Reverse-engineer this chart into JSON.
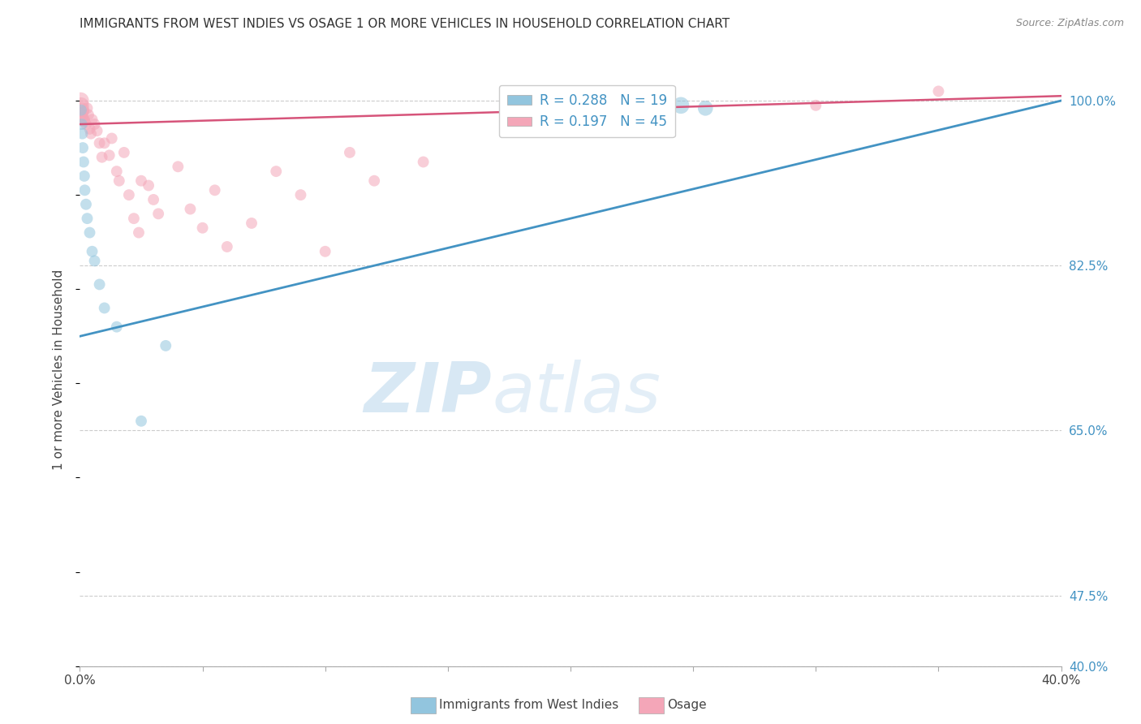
{
  "title": "IMMIGRANTS FROM WEST INDIES VS OSAGE 1 OR MORE VEHICLES IN HOUSEHOLD CORRELATION CHART",
  "source": "Source: ZipAtlas.com",
  "ylabel": "1 or more Vehicles in Household",
  "yticks": [
    40.0,
    47.5,
    65.0,
    82.5,
    100.0
  ],
  "ytick_labels": [
    "40.0%",
    "47.5%",
    "65.0%",
    "82.5%",
    "100.0%"
  ],
  "xmin": 0.0,
  "xmax": 40.0,
  "ymin": 40.0,
  "ymax": 103.0,
  "legend_label1": "Immigrants from West Indies",
  "legend_label2": "Osage",
  "r1": "0.288",
  "n1": "19",
  "r2": "0.197",
  "n2": "45",
  "color1": "#92c5de",
  "color2": "#f4a6b8",
  "line_color1": "#4393c3",
  "line_color2": "#d6547a",
  "watermark_zip": "ZIP",
  "watermark_atlas": "atlas",
  "blue_x0": 0.0,
  "blue_x1": 40.0,
  "blue_y0": 75.0,
  "blue_y1": 100.0,
  "pink_y0": 97.5,
  "pink_y1": 100.5,
  "west_indies_points": [
    [
      0.05,
      99.0
    ],
    [
      0.08,
      97.5
    ],
    [
      0.1,
      96.5
    ],
    [
      0.12,
      95.0
    ],
    [
      0.15,
      93.5
    ],
    [
      0.18,
      92.0
    ],
    [
      0.2,
      90.5
    ],
    [
      0.25,
      89.0
    ],
    [
      0.3,
      87.5
    ],
    [
      0.4,
      86.0
    ],
    [
      0.5,
      84.0
    ],
    [
      0.6,
      83.0
    ],
    [
      0.8,
      80.5
    ],
    [
      1.0,
      78.0
    ],
    [
      1.5,
      76.0
    ],
    [
      2.5,
      66.0
    ],
    [
      3.5,
      74.0
    ],
    [
      24.5,
      99.5
    ],
    [
      25.5,
      99.2
    ]
  ],
  "west_indies_sizes": [
    100,
    100,
    100,
    100,
    100,
    100,
    100,
    100,
    100,
    100,
    100,
    100,
    100,
    100,
    100,
    100,
    100,
    220,
    180
  ],
  "osage_points": [
    [
      0.03,
      100.0
    ],
    [
      0.05,
      99.5
    ],
    [
      0.08,
      99.0
    ],
    [
      0.1,
      98.5
    ],
    [
      0.12,
      98.2
    ],
    [
      0.15,
      98.8
    ],
    [
      0.18,
      98.0
    ],
    [
      0.2,
      97.8
    ],
    [
      0.25,
      97.5
    ],
    [
      0.3,
      99.2
    ],
    [
      0.35,
      98.5
    ],
    [
      0.4,
      97.0
    ],
    [
      0.45,
      96.5
    ],
    [
      0.5,
      98.0
    ],
    [
      0.6,
      97.5
    ],
    [
      0.7,
      96.8
    ],
    [
      0.8,
      95.5
    ],
    [
      0.9,
      94.0
    ],
    [
      1.0,
      95.5
    ],
    [
      1.2,
      94.2
    ],
    [
      1.3,
      96.0
    ],
    [
      1.5,
      92.5
    ],
    [
      1.6,
      91.5
    ],
    [
      1.8,
      94.5
    ],
    [
      2.0,
      90.0
    ],
    [
      2.2,
      87.5
    ],
    [
      2.4,
      86.0
    ],
    [
      2.5,
      91.5
    ],
    [
      2.8,
      91.0
    ],
    [
      3.0,
      89.5
    ],
    [
      3.2,
      88.0
    ],
    [
      4.0,
      93.0
    ],
    [
      4.5,
      88.5
    ],
    [
      5.0,
      86.5
    ],
    [
      5.5,
      90.5
    ],
    [
      6.0,
      84.5
    ],
    [
      7.0,
      87.0
    ],
    [
      8.0,
      92.5
    ],
    [
      9.0,
      90.0
    ],
    [
      10.0,
      84.0
    ],
    [
      11.0,
      94.5
    ],
    [
      12.0,
      91.5
    ],
    [
      14.0,
      93.5
    ],
    [
      30.0,
      99.5
    ],
    [
      35.0,
      101.0
    ]
  ],
  "osage_sizes": [
    220,
    200,
    180,
    100,
    100,
    100,
    100,
    100,
    100,
    100,
    100,
    100,
    100,
    100,
    100,
    100,
    100,
    100,
    100,
    100,
    100,
    100,
    100,
    100,
    100,
    100,
    100,
    100,
    100,
    100,
    100,
    100,
    100,
    100,
    100,
    100,
    100,
    100,
    100,
    100,
    100,
    100,
    100,
    100,
    100
  ]
}
